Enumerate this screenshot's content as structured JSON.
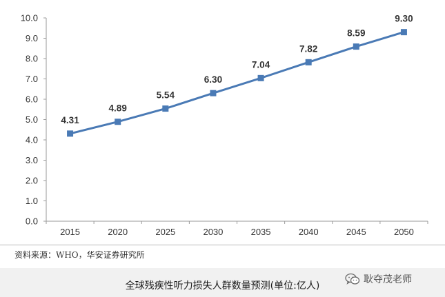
{
  "chart_data": {
    "type": "line",
    "title": "",
    "xlabel": "",
    "ylabel": "",
    "categories": [
      "2015",
      "2020",
      "2025",
      "2030",
      "2035",
      "2040",
      "2045",
      "2050"
    ],
    "series": [
      {
        "values": [
          4.31,
          4.89,
          5.54,
          6.3,
          7.04,
          7.82,
          8.59,
          9.3
        ]
      }
    ],
    "data_labels": [
      "4.31",
      "4.89",
      "5.54",
      "6.30",
      "7.04",
      "7.82",
      "8.59",
      "9.30"
    ],
    "ylim": [
      0,
      10
    ],
    "yticks": [
      "0.0",
      "1.0",
      "2.0",
      "3.0",
      "4.0",
      "5.0",
      "6.0",
      "7.0",
      "8.0",
      "9.0",
      "10.0"
    ],
    "grid": false,
    "legend": "none",
    "line_color": "#4a7ab5",
    "marker": "square"
  },
  "source": "资料来源：WHO，华安证券研究所",
  "caption": "全球残疾性听力损失人群数量预测(单位:亿人)",
  "watermark": {
    "icon": "wechat-icon",
    "text": "耿夺茂老师"
  }
}
